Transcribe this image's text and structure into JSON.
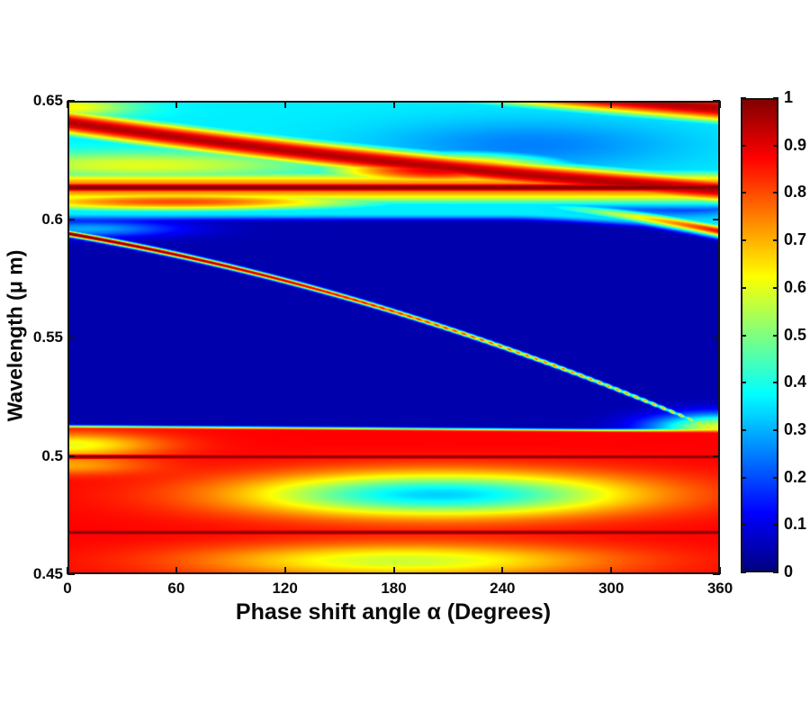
{
  "figure": {
    "background": "#ffffff",
    "frame_color": "#141414"
  },
  "x_axis": {
    "label": "Phase shift angle α (Degrees)",
    "range": [
      0,
      360
    ],
    "tick_values": [
      0,
      60,
      120,
      180,
      240,
      300,
      360
    ],
    "tick_labels": [
      "0",
      "60",
      "120",
      "180",
      "240",
      "300",
      "360"
    ]
  },
  "y_axis": {
    "label": "Wavelength (μ m)",
    "range": [
      0.45,
      0.65
    ],
    "tick_values": [
      0.65,
      0.6,
      0.55,
      0.5,
      0.45
    ],
    "tick_labels": [
      "0.65",
      "0.6",
      "0.55",
      "0.5",
      "0.45"
    ]
  },
  "colorbar": {
    "range": [
      0,
      1
    ],
    "tick_values": [
      1,
      0.9,
      0.8,
      0.7,
      0.6,
      0.5,
      0.4,
      0.3,
      0.2,
      0.1,
      0
    ],
    "tick_labels": [
      "1",
      "0.9",
      "0.8",
      "0.7",
      "0.6",
      "0.5",
      "0.4",
      "0.3",
      "0.2",
      "0.1",
      "0"
    ],
    "colormap": "jet"
  },
  "chart_data": {
    "type": "heatmap",
    "title": "",
    "xlabel": "Phase shift angle α (Degrees)",
    "ylabel": "Wavelength (μ m)",
    "x_range": [
      0,
      360
    ],
    "y_range": [
      0.45,
      0.65
    ],
    "value_range": [
      0,
      1
    ],
    "colormap": "jet",
    "legend_position": "right-colorbar",
    "grid": false,
    "model": {
      "regions": {
        "top": {
          "value": 0.36,
          "boundary": {
            "base": 0.6005,
            "drop": 0.004,
            "drop_start": 240
          },
          "width": 0.004
        },
        "mid": {
          "value": 0.045
        },
        "bottom": {
          "value": 0.875,
          "boundary": {
            "base": 0.5125,
            "slope": -0.002
          },
          "width": 0.0022
        }
      },
      "gauss": [
        {
          "name": "top-right-lightblue-ellipse",
          "mask": "top",
          "cx": 255,
          "cy": 0.6315,
          "sx": 60,
          "sy": 0.0075,
          "amp": -0.11
        },
        {
          "name": "left-yellow-wedge",
          "mask": "top",
          "cx": 40,
          "cy": 0.623,
          "sx": 70,
          "sy": 0.004,
          "amp": 0.24
        },
        {
          "name": "top-left-corner-yellow",
          "mask": "top",
          "cx": 0,
          "cy": 0.6475,
          "sx": 25,
          "sy": 0.003,
          "amp": 0.27
        },
        {
          "name": "right-blue-spot",
          "mask": "top",
          "cx": 338,
          "cy": 0.6055,
          "sx": 28,
          "sy": 0.0028,
          "amp": -0.2
        },
        {
          "name": "stripe-left-halo",
          "mask": "mid",
          "cx": 10,
          "cy": 0.596,
          "sx": 35,
          "sy": 0.0025,
          "amp": 0.25
        },
        {
          "name": "right-junction-wedge",
          "mask": "mid",
          "cx": 360,
          "cy": 0.512,
          "sx": 26,
          "sy": 0.004,
          "amp": 0.55
        },
        {
          "name": "bottom-cyan-ellipse",
          "mask": "bottom",
          "cx": 205,
          "cy": 0.4835,
          "sx": 75,
          "sy": 0.0065,
          "amp": -0.545
        },
        {
          "name": "bottom-yellow-ellipse",
          "mask": "bottom",
          "cx": 185,
          "cy": 0.4555,
          "sx": 78,
          "sy": 0.005,
          "amp": -0.3
        },
        {
          "name": "left-edge-notch-1",
          "mask": "bottom",
          "cx": 0,
          "cy": 0.5045,
          "sx": 35,
          "sy": 0.0035,
          "amp": -0.27
        },
        {
          "name": "left-edge-notch-2",
          "mask": "bottom",
          "cx": 0,
          "cy": 0.4955,
          "sx": 30,
          "sy": 0.0025,
          "amp": -0.15
        }
      ],
      "blobs": [
        {
          "name": "mid-red-fill",
          "cx": 205,
          "cy": 0.621,
          "sx": 55,
          "sy": 0.0055,
          "amp": 0.9
        },
        {
          "name": "left-lower-red-lobe",
          "cx": 60,
          "cy": 0.6075,
          "sx": 100,
          "sy": 0.0035,
          "amp": 0.8
        }
      ],
      "ridges": [
        {
          "name": "horizontal-band-skirt",
          "domain": [
            0,
            360
          ],
          "coeffs": [
            0.6135
          ],
          "amp": [
            0.78,
            0
          ],
          "sigma": [
            0.0058,
            0
          ],
          "mask": "top"
        },
        {
          "name": "horizontal-band-core",
          "domain": [
            0,
            360
          ],
          "coeffs": [
            0.6135
          ],
          "amp": [
            1.0,
            0
          ],
          "sigma": [
            0.0022,
            0
          ],
          "mask": "top"
        },
        {
          "name": "diagonal-band-A",
          "domain": [
            0,
            360
          ],
          "coeffs": [
            0.641,
            -0.0385,
            0.01
          ],
          "amp": [
            0.95,
            0
          ],
          "sigma": [
            0.0045,
            0
          ],
          "mask": "top"
        },
        {
          "name": "diagonal-band-B",
          "domain": [
            0,
            360
          ],
          "coeffs": [
            0.6705,
            -0.0235
          ],
          "amp": [
            0.95,
            0
          ],
          "sigma": [
            0.005,
            0
          ],
          "mask": "top"
        },
        {
          "name": "right-branch",
          "domain": [
            240,
            360
          ],
          "coeffs": [
            0.607,
            -0.006,
            -0.006
          ],
          "amp": [
            0.2,
            0.68
          ],
          "sigma": [
            0.002,
            0
          ],
          "mask": "none"
        },
        {
          "name": "narrow-resonance-stripe",
          "domain": [
            0,
            360
          ],
          "coeffs": [
            0.594,
            -0.048,
            -0.036
          ],
          "amp": [
            1.05,
            -0.35
          ],
          "sigma": [
            0.0009,
            -0.0003
          ],
          "dash": {
            "start": 0.35,
            "strength": 0.5,
            "period_deg": 5
          },
          "mask": "none"
        },
        {
          "name": "dark-red-line-0.50",
          "domain": [
            0,
            360
          ],
          "coeffs": [
            0.4995
          ],
          "amp": [
            1.0,
            0
          ],
          "sigma": [
            0.0015,
            0
          ],
          "mask": "bottom"
        },
        {
          "name": "dark-red-line-0.468",
          "domain": [
            0,
            360
          ],
          "coeffs": [
            0.4675
          ],
          "amp": [
            1.0,
            0
          ],
          "sigma": [
            0.0016,
            0
          ],
          "mask": "bottom"
        }
      ]
    }
  }
}
